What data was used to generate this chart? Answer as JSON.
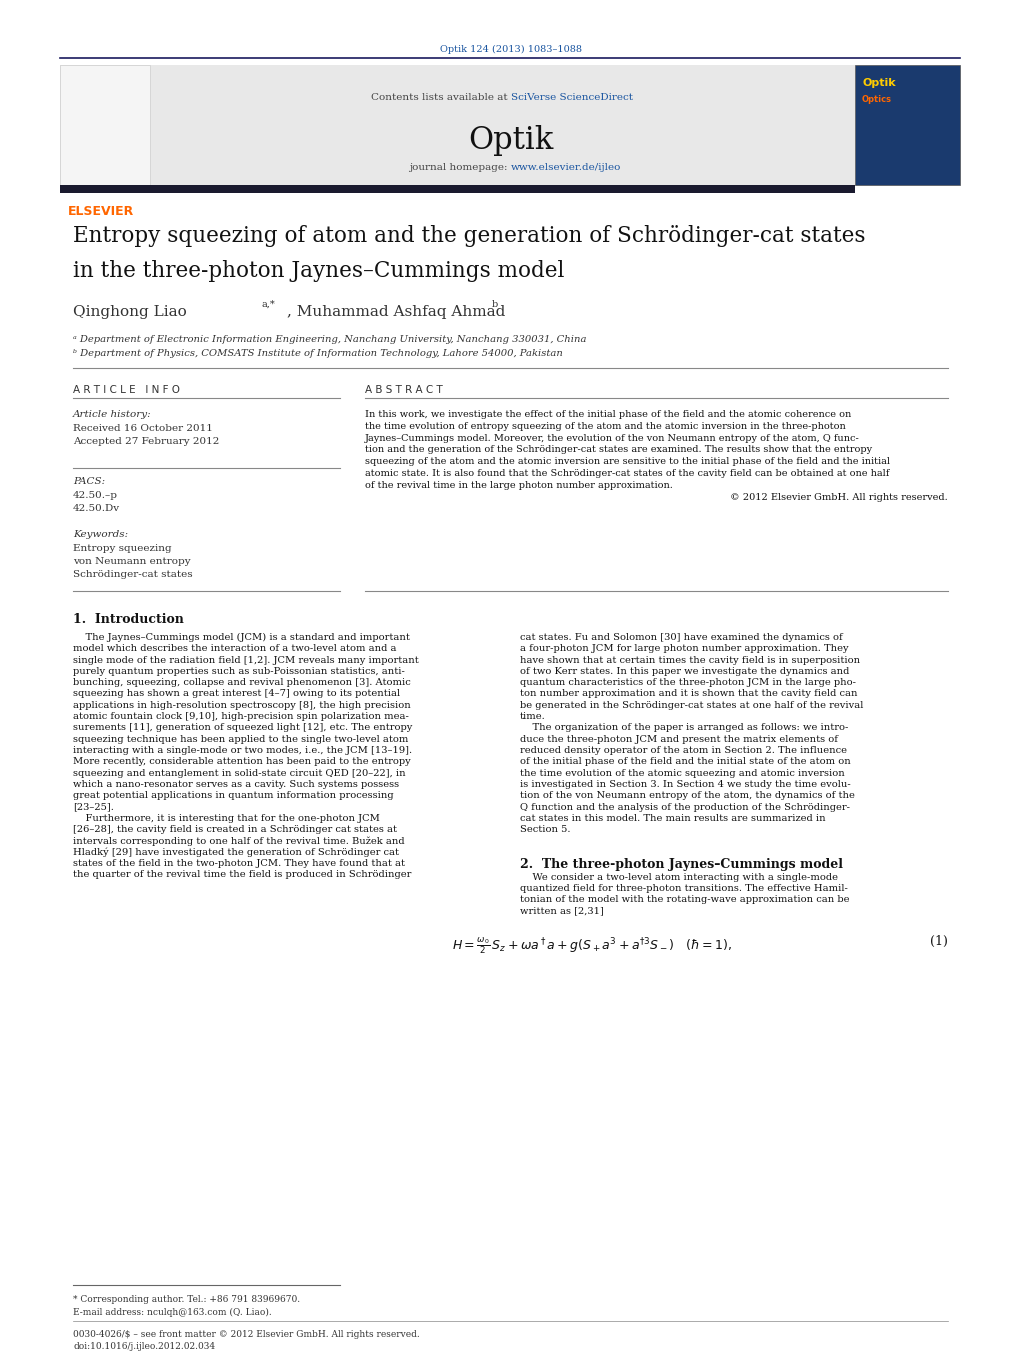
{
  "page_width": 10.21,
  "page_height": 13.51,
  "bg_color": "#ffffff",
  "top_journal_ref": "Optik 124 (2013) 1083–1088",
  "top_journal_ref_color": "#1a55a0",
  "header_bg": "#e8e8e8",
  "header_contents": "Contents lists available at ",
  "header_sciverse": "SciVerse ScienceDirect",
  "header_sciverse_color": "#1a55a0",
  "journal_name": "Optik",
  "journal_homepage_text": "journal homepage: ",
  "journal_homepage_url": "www.elsevier.de/ijleo",
  "journal_homepage_url_color": "#1a55a0",
  "dark_bar_color": "#1a1a2e",
  "elsevier_color": "#ff6600",
  "article_title_line1": "Entropy squeezing of atom and the generation of Schrödinger-cat states",
  "article_title_line2": "in the three-photon Jaynes–Cummings model",
  "authors": "Qinghong Liao",
  "authors2": ", Muhammad Ashfaq Ahmad",
  "affil_a": "ᵃ Department of Electronic Information Engineering, Nanchang University, Nanchang 330031, China",
  "affil_b": "ᵇ Department of Physics, COMSATS Institute of Information Technology, Lahore 54000, Pakistan",
  "article_info_title": "A R T I C L E   I N F O",
  "abstract_title": "A B S T R A C T",
  "article_history_label": "Article history:",
  "received": "Received 16 October 2011",
  "accepted": "Accepted 27 February 2012",
  "pacs_label": "PACS:",
  "pacs1": "42.50.–p",
  "pacs2": "42.50.Dv",
  "keywords_label": "Keywords:",
  "kw1": "Entropy squeezing",
  "kw2": "von Neumann entropy",
  "kw3": "Schrödinger-cat states",
  "copyright": "© 2012 Elsevier GmbH. All rights reserved.",
  "section1_title": "1.  Introduction",
  "section2_title": "2.  The three-photon Jaynes–Cummings model",
  "section2_text_lines": [
    "    We consider a two-level atom interacting with a single-mode",
    "quantized field for three-photon transitions. The effective Hamil-",
    "tonian of the model with the rotating-wave approximation can be",
    "written as [2,31]"
  ],
  "footnote_star": "* Corresponding author. Tel.: +86 791 83969670.",
  "footnote_email": "E-mail address: nculqh@163.com (Q. Liao).",
  "footnote_issn": "0030-4026/$ – see front matter © 2012 Elsevier GmbH. All rights reserved.",
  "footnote_doi": "doi:10.1016/j.ijleo.2012.02.034",
  "abstract_lines": [
    "In this work, we investigate the effect of the initial phase of the field and the atomic coherence on",
    "the time evolution of entropy squeezing of the atom and the atomic inversion in the three-photon",
    "Jaynes–Cummings model. Moreover, the evolution of the von Neumann entropy of the atom, Q func-",
    "tion and the generation of the Schrödinger-cat states are examined. The results show that the entropy",
    "squeezing of the atom and the atomic inversion are sensitive to the initial phase of the field and the initial",
    "atomic state. It is also found that the Schrödinger-cat states of the cavity field can be obtained at one half",
    "of the revival time in the large photon number approximation."
  ],
  "intro1_lines": [
    "    The Jaynes–Cummings model (JCM) is a standard and important",
    "model which describes the interaction of a two-level atom and a",
    "single mode of the radiation field [1,2]. JCM reveals many important",
    "purely quantum properties such as sub-Poissonian statistics, anti-",
    "bunching, squeezing, collapse and revival phenomenon [3]. Atomic",
    "squeezing has shown a great interest [4–7] owing to its potential",
    "applications in high-resolution spectroscopy [8], the high precision",
    "atomic fountain clock [9,10], high-precision spin polarization mea-",
    "surements [11], generation of squeezed light [12], etc. The entropy",
    "squeezing technique has been applied to the single two-level atom",
    "interacting with a single-mode or two modes, i.e., the JCM [13–19].",
    "More recently, considerable attention has been paid to the entropy",
    "squeezing and entanglement in solid-state circuit QED [20–22], in",
    "which a nano-resonator serves as a cavity. Such systems possess",
    "great potential applications in quantum information processing",
    "[23–25].",
    "    Furthermore, it is interesting that for the one-photon JCM",
    "[26–28], the cavity field is created in a Schrödinger cat states at",
    "intervals corresponding to one half of the revival time. Bužek and",
    "Hladký [29] have investigated the generation of Schrödinger cat",
    "states of the field in the two-photon JCM. They have found that at",
    "the quarter of the revival time the field is produced in Schrödinger"
  ],
  "intro2_lines": [
    "cat states. Fu and Solomon [30] have examined the dynamics of",
    "a four-photon JCM for large photon number approximation. They",
    "have shown that at certain times the cavity field is in superposition",
    "of two Kerr states. In this paper we investigate the dynamics and",
    "quantum characteristics of the three-photon JCM in the large pho-",
    "ton number approximation and it is shown that the cavity field can",
    "be generated in the Schrödinger-cat states at one half of the revival",
    "time.",
    "    The organization of the paper is arranged as follows: we intro-",
    "duce the three-photon JCM and present the matrix elements of",
    "reduced density operator of the atom in Section 2. The influence",
    "of the initial phase of the field and the initial state of the atom on",
    "the time evolution of the atomic squeezing and atomic inversion",
    "is investigated in Section 3. In Section 4 we study the time evolu-",
    "tion of the von Neumann entropy of the atom, the dynamics of the",
    "Q function and the analysis of the production of the Schrödinger-",
    "cat states in this model. The main results are summarized in",
    "Section 5."
  ]
}
